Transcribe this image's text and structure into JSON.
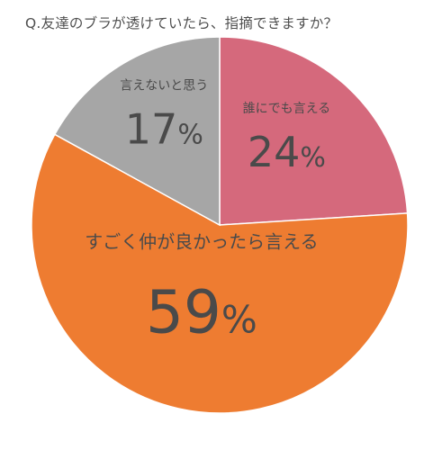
{
  "chart_data": {
    "type": "pie",
    "title": "Q.友達のブラが透けていたら、指摘できますか？",
    "categories": [
      "誰にでも言える",
      "すごく仲が良かったら言える",
      "言えないと思う"
    ],
    "values": [
      24,
      59,
      17
    ],
    "value_labels": [
      "24",
      "59",
      "17"
    ],
    "unit": "%",
    "colors": [
      "#d5697c",
      "#ee7c31",
      "#a6a6a6"
    ],
    "start": "12 o'clock",
    "direction": "clockwise",
    "legend": "none"
  }
}
